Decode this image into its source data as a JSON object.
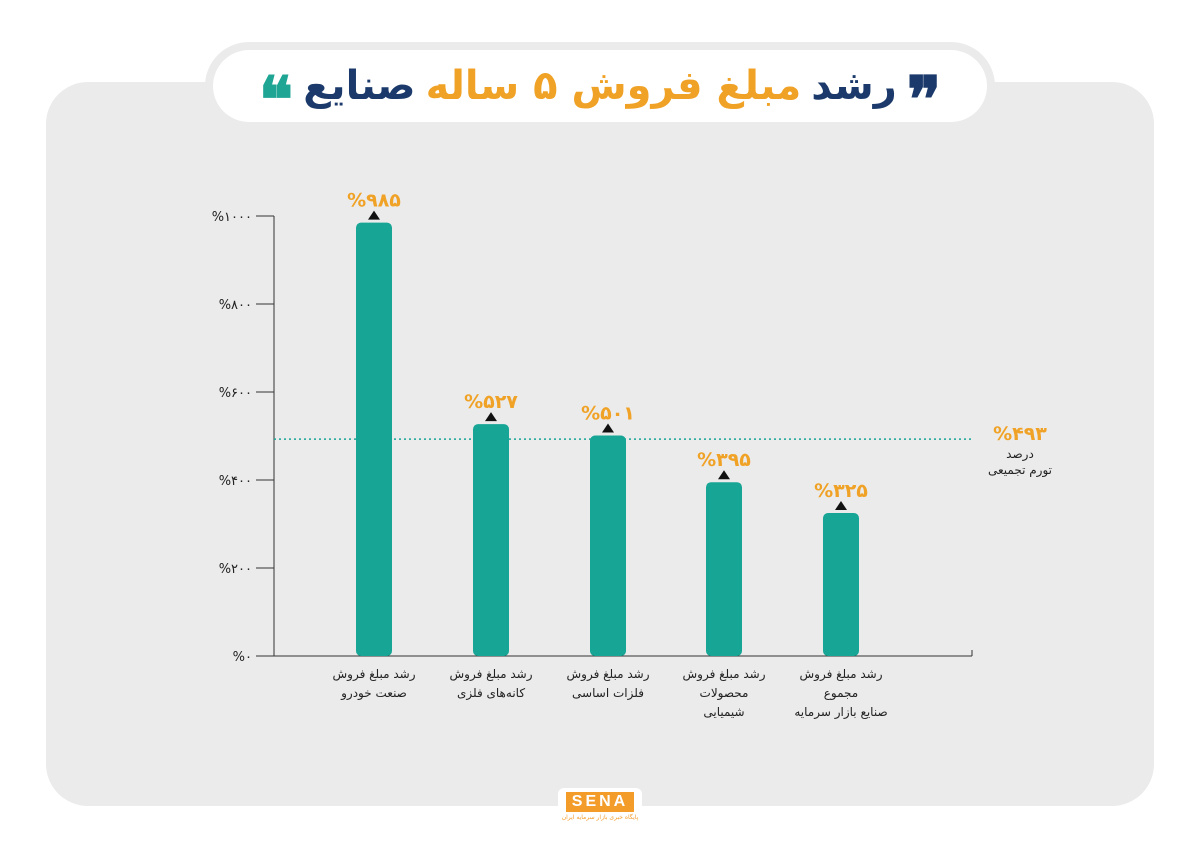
{
  "title": {
    "part1": "رشد",
    "part2": "مبلغ فروش ۵ ساله",
    "part3": "صنایع",
    "open_quote": "❞",
    "close_quote": "❝",
    "open_quote_color": "#1b3a6b",
    "close_quote_color": "#1ea594"
  },
  "colors": {
    "bar": "#17a596",
    "label": "#f0a227",
    "axis": "#333333",
    "reference_line": "#17a596"
  },
  "chart_data": {
    "type": "bar",
    "categories": [
      [
        "رشد مبلغ فروش",
        "صنعت خودرو"
      ],
      [
        "رشد مبلغ فروش",
        "کانه‌های فلزی"
      ],
      [
        "رشد مبلغ فروش",
        "فلزات اساسی"
      ],
      [
        "رشد مبلغ فروش",
        "محصولات",
        "شیمیایی"
      ],
      [
        "رشد مبلغ فروش",
        "مجموع",
        "صنایع بازار سرمایه"
      ]
    ],
    "values": [
      985,
      527,
      501,
      395,
      325
    ],
    "value_labels": [
      "%۹۸۵",
      "%۵۲۷",
      "%۵۰۱",
      "%۳۹۵",
      "%۳۲۵"
    ],
    "ylim": [
      0,
      1000
    ],
    "yticks": [
      0,
      200,
      400,
      600,
      800,
      1000
    ],
    "ytick_labels": [
      "%۰",
      "%۲۰۰",
      "%۴۰۰",
      "%۶۰۰",
      "%۸۰۰",
      "%۱۰۰۰"
    ],
    "reference": {
      "value": 493,
      "label": "%۴۹۳",
      "caption": [
        "درصد",
        "تورم تجمیعی"
      ]
    },
    "grid": false
  },
  "logo": {
    "name": "SENA",
    "subtitle": "پایگاه خبری بازار سرمایه ایران"
  }
}
